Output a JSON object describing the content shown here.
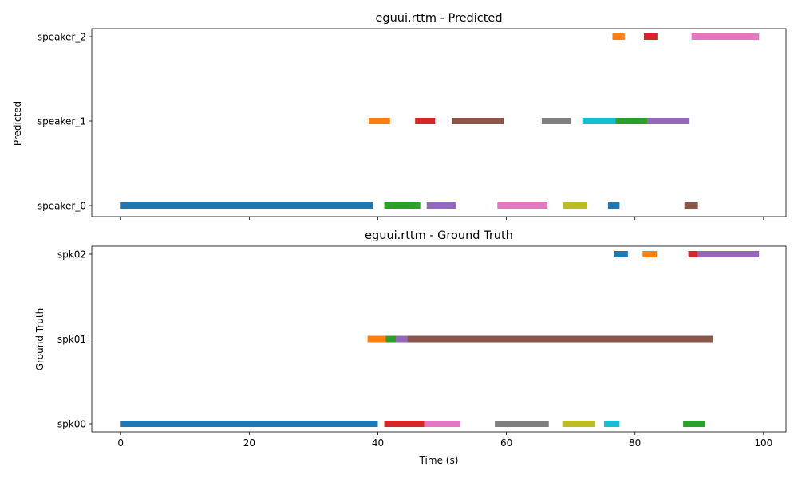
{
  "chart_data": [
    {
      "type": "timeline",
      "title": "eguui.rttm - Predicted",
      "xlabel": "",
      "ylabel": "Predicted",
      "xlim": [
        -4.5,
        103.5
      ],
      "xticks": [
        0,
        20,
        40,
        60,
        80,
        100
      ],
      "show_xtick_labels": false,
      "categories": [
        "speaker_0",
        "speaker_1",
        "speaker_2"
      ],
      "grid": false,
      "segments": [
        {
          "category": "speaker_0",
          "start": 0.0,
          "end": 39.3,
          "color": "#1f77b4"
        },
        {
          "category": "speaker_0",
          "start": 41.0,
          "end": 46.6,
          "color": "#2ca02c"
        },
        {
          "category": "speaker_0",
          "start": 47.6,
          "end": 52.2,
          "color": "#9467bd"
        },
        {
          "category": "speaker_0",
          "start": 58.6,
          "end": 66.4,
          "color": "#e377c2"
        },
        {
          "category": "speaker_0",
          "start": 68.8,
          "end": 72.6,
          "color": "#bcbd22"
        },
        {
          "category": "speaker_0",
          "start": 75.8,
          "end": 77.6,
          "color": "#1f77b4"
        },
        {
          "category": "speaker_0",
          "start": 87.7,
          "end": 89.8,
          "color": "#8c564b"
        },
        {
          "category": "speaker_1",
          "start": 38.6,
          "end": 41.9,
          "color": "#ff7f0e"
        },
        {
          "category": "speaker_1",
          "start": 45.8,
          "end": 48.9,
          "color": "#d62728"
        },
        {
          "category": "speaker_1",
          "start": 51.5,
          "end": 59.6,
          "color": "#8c564b"
        },
        {
          "category": "speaker_1",
          "start": 65.5,
          "end": 70.0,
          "color": "#7f7f7f"
        },
        {
          "category": "speaker_1",
          "start": 71.8,
          "end": 77.0,
          "color": "#17becf"
        },
        {
          "category": "speaker_1",
          "start": 77.0,
          "end": 82.0,
          "color": "#2ca02c"
        },
        {
          "category": "speaker_1",
          "start": 82.0,
          "end": 88.5,
          "color": "#9467bd"
        },
        {
          "category": "speaker_2",
          "start": 76.5,
          "end": 78.4,
          "color": "#ff7f0e"
        },
        {
          "category": "speaker_2",
          "start": 81.4,
          "end": 83.5,
          "color": "#d62728"
        },
        {
          "category": "speaker_2",
          "start": 88.8,
          "end": 99.3,
          "color": "#e377c2"
        }
      ]
    },
    {
      "type": "timeline",
      "title": "eguui.rttm - Ground Truth",
      "xlabel": "Time (s)",
      "ylabel": "Ground Truth",
      "xlim": [
        -4.5,
        103.5
      ],
      "xticks": [
        0,
        20,
        40,
        60,
        80,
        100
      ],
      "show_xtick_labels": true,
      "categories": [
        "spk00",
        "spk01",
        "spk02"
      ],
      "grid": false,
      "segments": [
        {
          "category": "spk00",
          "start": 0.0,
          "end": 40.0,
          "color": "#1f77b4"
        },
        {
          "category": "spk00",
          "start": 41.0,
          "end": 47.2,
          "color": "#d62728"
        },
        {
          "category": "spk00",
          "start": 47.2,
          "end": 52.8,
          "color": "#e377c2"
        },
        {
          "category": "spk00",
          "start": 58.2,
          "end": 66.6,
          "color": "#7f7f7f"
        },
        {
          "category": "spk00",
          "start": 68.7,
          "end": 73.7,
          "color": "#bcbd22"
        },
        {
          "category": "spk00",
          "start": 75.2,
          "end": 77.6,
          "color": "#17becf"
        },
        {
          "category": "spk00",
          "start": 87.5,
          "end": 90.9,
          "color": "#2ca02c"
        },
        {
          "category": "spk01",
          "start": 38.4,
          "end": 41.2,
          "color": "#ff7f0e"
        },
        {
          "category": "spk01",
          "start": 41.2,
          "end": 42.8,
          "color": "#2ca02c"
        },
        {
          "category": "spk01",
          "start": 42.8,
          "end": 44.6,
          "color": "#9467bd"
        },
        {
          "category": "spk01",
          "start": 44.6,
          "end": 92.2,
          "color": "#8c564b"
        },
        {
          "category": "spk02",
          "start": 76.8,
          "end": 78.9,
          "color": "#1f77b4"
        },
        {
          "category": "spk02",
          "start": 81.2,
          "end": 83.4,
          "color": "#ff7f0e"
        },
        {
          "category": "spk02",
          "start": 88.3,
          "end": 89.8,
          "color": "#d62728"
        },
        {
          "category": "spk02",
          "start": 89.8,
          "end": 99.3,
          "color": "#9467bd"
        }
      ]
    }
  ]
}
